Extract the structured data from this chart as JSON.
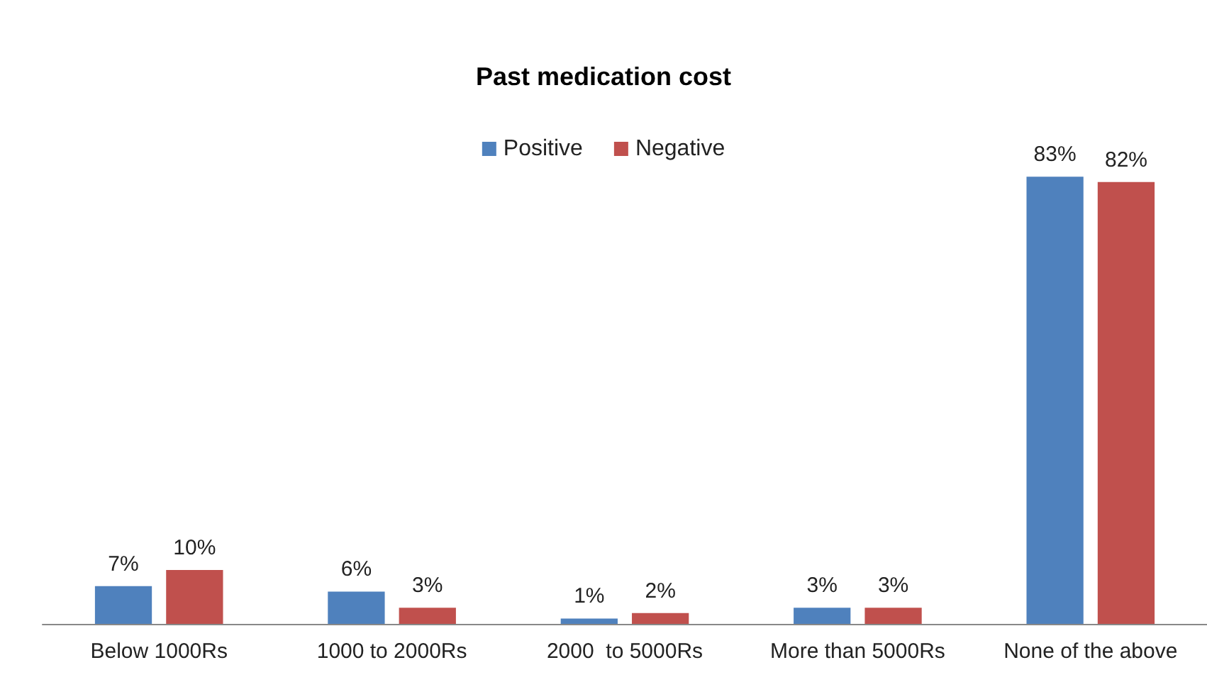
{
  "chart_data": {
    "type": "bar",
    "title": "Past medication cost",
    "categories": [
      "Below 1000Rs",
      "1000 to 2000Rs",
      "2000  to 5000Rs",
      "More than 5000Rs",
      "None of the above"
    ],
    "series": [
      {
        "name": "Positive",
        "color": "#4f81bd",
        "values": [
          7,
          6,
          1,
          3,
          83
        ],
        "value_labels": [
          "7%",
          "6%",
          "1%",
          "3%",
          "83%"
        ]
      },
      {
        "name": "Negative",
        "color": "#c0504d",
        "values": [
          10,
          3,
          2,
          3,
          82
        ],
        "value_labels": [
          "10%",
          "3%",
          "2%",
          "3%",
          "82%"
        ]
      }
    ],
    "legend": "top"
  }
}
